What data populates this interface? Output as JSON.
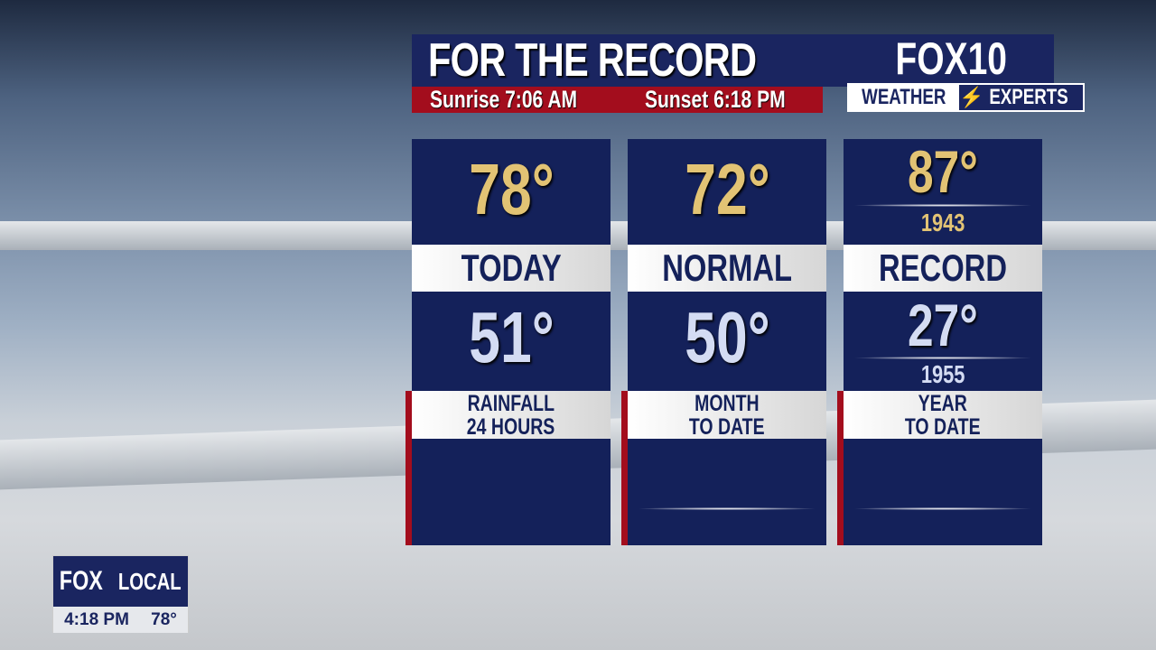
{
  "header": {
    "title": "FOR THE RECORD",
    "sunrise": "Sunrise 7:06 AM",
    "sunset": "Sunset 6:18 PM"
  },
  "logo": {
    "brand": "FOX10",
    "tagline_left": "WEATHER",
    "tagline_right": "EXPERTS"
  },
  "columns": [
    {
      "high": "78°",
      "label": "TODAY",
      "low": "51°",
      "footer": [
        "RAINFALL",
        "24 HOURS"
      ]
    },
    {
      "high": "72°",
      "label": "NORMAL",
      "low": "50°",
      "footer": [
        "MONTH",
        "TO DATE"
      ]
    },
    {
      "high": "87°",
      "high_year": "1943",
      "label": "RECORD",
      "low": "27°",
      "low_year": "1955",
      "footer": [
        "YEAR",
        "TO DATE"
      ]
    }
  ],
  "bug": {
    "brand_a": "FOX",
    "brand_b": "LOCAL",
    "time": "4:18 PM",
    "temp": "78°"
  },
  "colors": {
    "navy": "#14215a",
    "red": "#a30d1d",
    "gold": "#e2c374"
  }
}
